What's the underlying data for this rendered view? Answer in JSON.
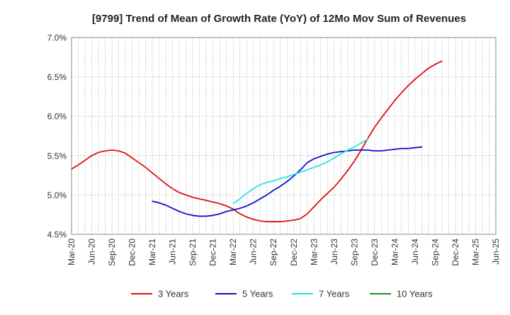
{
  "chart_data": {
    "type": "line",
    "title": "[9799]  Trend of Mean of Growth Rate (YoY) of 12Mo Mov Sum of Revenues",
    "xlabel": "",
    "ylabel": "",
    "ylim": [
      4.5,
      7.0
    ],
    "y_ticks": [
      4.5,
      5.0,
      5.5,
      6.0,
      6.5,
      7.0
    ],
    "y_tick_labels": [
      "4.5%",
      "5.0%",
      "5.5%",
      "6.0%",
      "6.5%",
      "7.0%"
    ],
    "x_range": [
      0,
      63
    ],
    "x_ticks": [
      0,
      3,
      6,
      9,
      12,
      15,
      18,
      21,
      24,
      27,
      30,
      33,
      36,
      39,
      42,
      45,
      48,
      51,
      54,
      57,
      60,
      63
    ],
    "x_tick_labels": [
      "Mar-20",
      "Jun-20",
      "Sep-20",
      "Dec-20",
      "Mar-21",
      "Jun-21",
      "Sep-21",
      "Dec-21",
      "Mar-22",
      "Jun-22",
      "Sep-22",
      "Dec-22",
      "Mar-23",
      "Jun-23",
      "Sep-23",
      "Dec-23",
      "Mar-24",
      "Jun-24",
      "Sep-24",
      "Dec-24",
      "Mar-25",
      "Jun-25"
    ],
    "grid": true,
    "legend_position": "bottom",
    "series": [
      {
        "name": "3 Years",
        "color": "#dd1111",
        "points": [
          [
            0,
            5.33
          ],
          [
            1,
            5.38
          ],
          [
            2,
            5.44
          ],
          [
            3,
            5.5
          ],
          [
            4,
            5.54
          ],
          [
            5,
            5.56
          ],
          [
            6,
            5.57
          ],
          [
            7,
            5.56
          ],
          [
            8,
            5.53
          ],
          [
            9,
            5.47
          ],
          [
            10,
            5.41
          ],
          [
            11,
            5.35
          ],
          [
            12,
            5.28
          ],
          [
            13,
            5.21
          ],
          [
            14,
            5.14
          ],
          [
            15,
            5.08
          ],
          [
            16,
            5.03
          ],
          [
            17,
            5.0
          ],
          [
            18,
            4.97
          ],
          [
            19,
            4.95
          ],
          [
            20,
            4.93
          ],
          [
            21,
            4.91
          ],
          [
            22,
            4.89
          ],
          [
            23,
            4.86
          ],
          [
            24,
            4.82
          ],
          [
            25,
            4.76
          ],
          [
            26,
            4.72
          ],
          [
            27,
            4.69
          ],
          [
            28,
            4.67
          ],
          [
            29,
            4.66
          ],
          [
            30,
            4.66
          ],
          [
            31,
            4.66
          ],
          [
            32,
            4.67
          ],
          [
            33,
            4.68
          ],
          [
            34,
            4.7
          ],
          [
            35,
            4.76
          ],
          [
            36,
            4.85
          ],
          [
            37,
            4.94
          ],
          [
            38,
            5.02
          ],
          [
            39,
            5.1
          ],
          [
            40,
            5.2
          ],
          [
            41,
            5.31
          ],
          [
            42,
            5.43
          ],
          [
            43,
            5.57
          ],
          [
            44,
            5.72
          ],
          [
            45,
            5.86
          ],
          [
            46,
            5.98
          ],
          [
            47,
            6.09
          ],
          [
            48,
            6.2
          ],
          [
            49,
            6.3
          ],
          [
            50,
            6.39
          ],
          [
            51,
            6.47
          ],
          [
            52,
            6.54
          ],
          [
            53,
            6.61
          ],
          [
            54,
            6.66
          ],
          [
            55,
            6.7
          ]
        ]
      },
      {
        "name": "5 Years",
        "color": "#1111cc",
        "points": [
          [
            12,
            4.92
          ],
          [
            13,
            4.9
          ],
          [
            14,
            4.87
          ],
          [
            15,
            4.83
          ],
          [
            16,
            4.79
          ],
          [
            17,
            4.76
          ],
          [
            18,
            4.74
          ],
          [
            19,
            4.73
          ],
          [
            20,
            4.73
          ],
          [
            21,
            4.74
          ],
          [
            22,
            4.76
          ],
          [
            23,
            4.79
          ],
          [
            24,
            4.81
          ],
          [
            25,
            4.83
          ],
          [
            26,
            4.86
          ],
          [
            27,
            4.9
          ],
          [
            28,
            4.95
          ],
          [
            29,
            5.0
          ],
          [
            30,
            5.06
          ],
          [
            31,
            5.11
          ],
          [
            32,
            5.17
          ],
          [
            33,
            5.24
          ],
          [
            34,
            5.32
          ],
          [
            35,
            5.41
          ],
          [
            36,
            5.46
          ],
          [
            37,
            5.49
          ],
          [
            38,
            5.52
          ],
          [
            39,
            5.54
          ],
          [
            40,
            5.55
          ],
          [
            41,
            5.56
          ],
          [
            42,
            5.57
          ],
          [
            43,
            5.57
          ],
          [
            44,
            5.57
          ],
          [
            45,
            5.56
          ],
          [
            46,
            5.56
          ],
          [
            47,
            5.57
          ],
          [
            48,
            5.58
          ],
          [
            49,
            5.59
          ],
          [
            50,
            5.59
          ],
          [
            51,
            5.6
          ],
          [
            52,
            5.61
          ]
        ]
      },
      {
        "name": "7 Years",
        "color": "#22e5e5",
        "points": [
          [
            24,
            4.89
          ],
          [
            25,
            4.95
          ],
          [
            26,
            5.02
          ],
          [
            27,
            5.08
          ],
          [
            28,
            5.13
          ],
          [
            29,
            5.16
          ],
          [
            30,
            5.18
          ],
          [
            31,
            5.21
          ],
          [
            32,
            5.23
          ],
          [
            33,
            5.26
          ],
          [
            34,
            5.29
          ],
          [
            35,
            5.32
          ],
          [
            36,
            5.35
          ],
          [
            37,
            5.38
          ],
          [
            38,
            5.42
          ],
          [
            39,
            5.47
          ],
          [
            40,
            5.52
          ],
          [
            41,
            5.57
          ],
          [
            42,
            5.61
          ],
          [
            43,
            5.66
          ],
          [
            44,
            5.71
          ]
        ]
      },
      {
        "name": "10 Years",
        "color": "#228b22",
        "points": []
      }
    ]
  }
}
